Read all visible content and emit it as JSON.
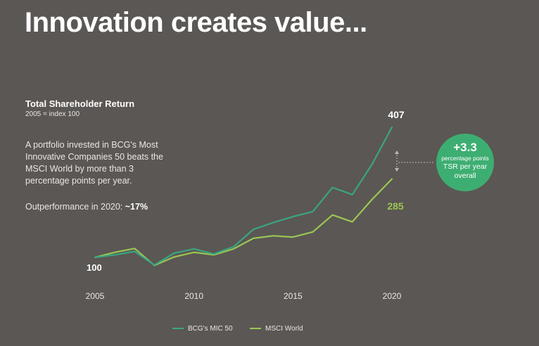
{
  "title": "Innovation creates value...",
  "description": "A portfolio invested in BCG's Most Innovative Companies 50 beats the MSCI World by more than 3 percentage points per year.",
  "outperformance": {
    "label": "Outperformance in 2020: ",
    "value": "~17%"
  },
  "badge": {
    "value": "+3.3",
    "unit": "percentage points",
    "line1": "TSR per year",
    "line2": "overall"
  },
  "chart_data": {
    "type": "line",
    "title": "Total Shareholder Return",
    "subtitle": "2005 = index 100",
    "x": [
      2005,
      2006,
      2007,
      2008,
      2009,
      2010,
      2011,
      2012,
      2013,
      2014,
      2015,
      2016,
      2017,
      2018,
      2019,
      2020
    ],
    "xticks": [
      2005,
      2010,
      2015,
      2020
    ],
    "ylim": [
      50,
      440
    ],
    "grid": false,
    "legend_position": "bottom",
    "series": [
      {
        "name": "BCG's MIC 50",
        "color": "#3aa583",
        "values": [
          100,
          106,
          114,
          82,
          110,
          120,
          108,
          125,
          166,
          182,
          196,
          208,
          265,
          248,
          320,
          407
        ]
      },
      {
        "name": "MSCI World",
        "color": "#9bc653",
        "values": [
          100,
          112,
          121,
          81,
          101,
          112,
          106,
          120,
          145,
          151,
          148,
          160,
          200,
          184,
          237,
          285
        ]
      }
    ],
    "annotations": [
      {
        "text": "100",
        "x": 2005,
        "y": 100
      },
      {
        "text": "407",
        "x": 2020,
        "y": 407
      },
      {
        "text": "285",
        "x": 2020,
        "y": 285
      }
    ]
  }
}
